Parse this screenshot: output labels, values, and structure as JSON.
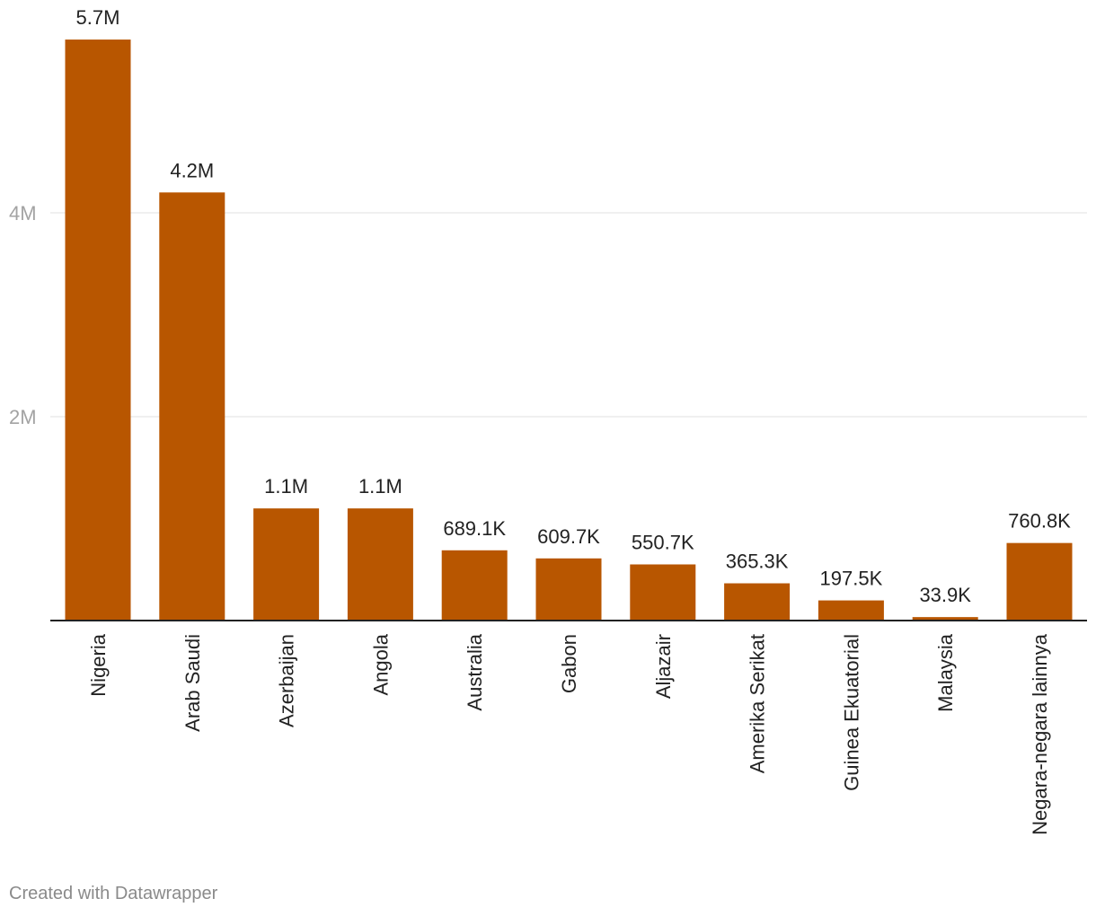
{
  "chart_data": {
    "type": "bar",
    "title": "",
    "xlabel": "",
    "ylabel": "",
    "categories": [
      "Nigeria",
      "Arab Saudi",
      "Azerbaijan",
      "Angola",
      "Australia",
      "Gabon",
      "Aljazair",
      "Amerika Serikat",
      "Guinea Ekuatorial",
      "Malaysia",
      "Negara-negara lainnya"
    ],
    "values": [
      5700000,
      4200000,
      1100000,
      1100000,
      689100,
      609700,
      550700,
      365300,
      197500,
      33900,
      760800
    ],
    "value_labels": [
      "5.7M",
      "4.2M",
      "1.1M",
      "1.1M",
      "689.1K",
      "609.7K",
      "550.7K",
      "365.3K",
      "197.5K",
      "33.9K",
      "760.8K"
    ],
    "yticks": [
      {
        "value": 2000000,
        "label": "2M"
      },
      {
        "value": 4000000,
        "label": "4M"
      }
    ],
    "ylim": [
      0,
      6000000
    ],
    "grid": true,
    "bar_color": "#b85600"
  },
  "footer": {
    "credit": "Created with Datawrapper"
  }
}
